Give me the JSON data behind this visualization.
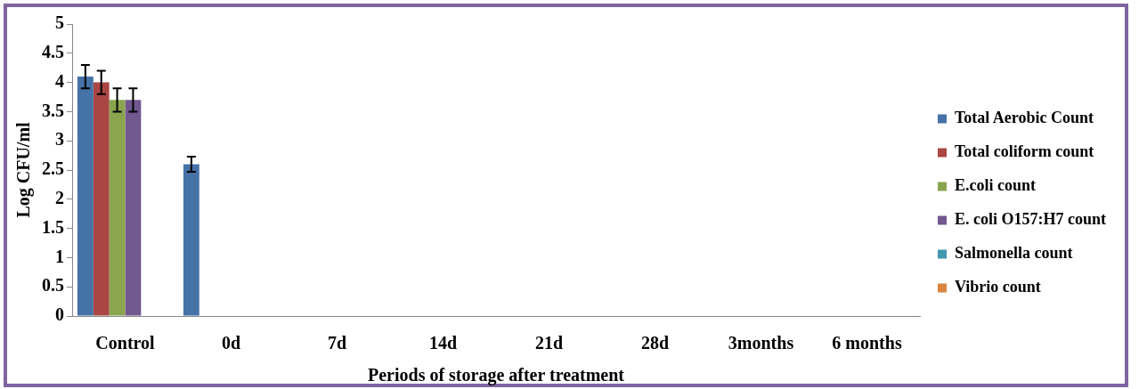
{
  "chart_data": {
    "type": "bar",
    "xlabel": "Periods of storage after treatment",
    "ylabel": "Log CFU/ml",
    "categories": [
      "Control",
      "0d",
      "7d",
      "14d",
      "21d",
      "28d",
      "3months",
      "6 months"
    ],
    "series": [
      {
        "name": "Total Aerobic Count",
        "color": "#4572a7",
        "values": [
          4.1,
          2.6,
          null,
          null,
          null,
          null,
          null,
          null
        ],
        "errors": [
          0.2,
          0.13,
          null,
          null,
          null,
          null,
          null,
          null
        ]
      },
      {
        "name": "Total coliform count",
        "color": "#aa4643",
        "values": [
          4.0,
          0,
          null,
          null,
          null,
          null,
          null,
          null
        ],
        "errors": [
          0.2,
          null,
          null,
          null,
          null,
          null,
          null,
          null
        ]
      },
      {
        "name": "E.coli count",
        "color": "#89a54e",
        "values": [
          3.7,
          0,
          null,
          null,
          null,
          null,
          null,
          null
        ],
        "errors": [
          0.2,
          null,
          null,
          null,
          null,
          null,
          null,
          null
        ]
      },
      {
        "name": "E. coli O157:H7 count",
        "color": "#71588f",
        "values": [
          3.7,
          0,
          null,
          null,
          null,
          null,
          null,
          null
        ],
        "errors": [
          0.2,
          null,
          null,
          null,
          null,
          null,
          null,
          null
        ]
      },
      {
        "name": "Salmonella count",
        "color": "#4198af",
        "values": [
          0,
          0,
          null,
          null,
          null,
          null,
          null,
          null
        ]
      },
      {
        "name": "Vibrio count",
        "color": "#db843d",
        "values": [
          0,
          0,
          null,
          null,
          null,
          null,
          null,
          null
        ]
      }
    ],
    "ylim": [
      0,
      5
    ],
    "yticks": [
      0,
      0.5,
      1,
      1.5,
      2,
      2.5,
      3,
      3.5,
      4,
      4.5,
      5
    ],
    "grid": false,
    "legend": "right"
  }
}
